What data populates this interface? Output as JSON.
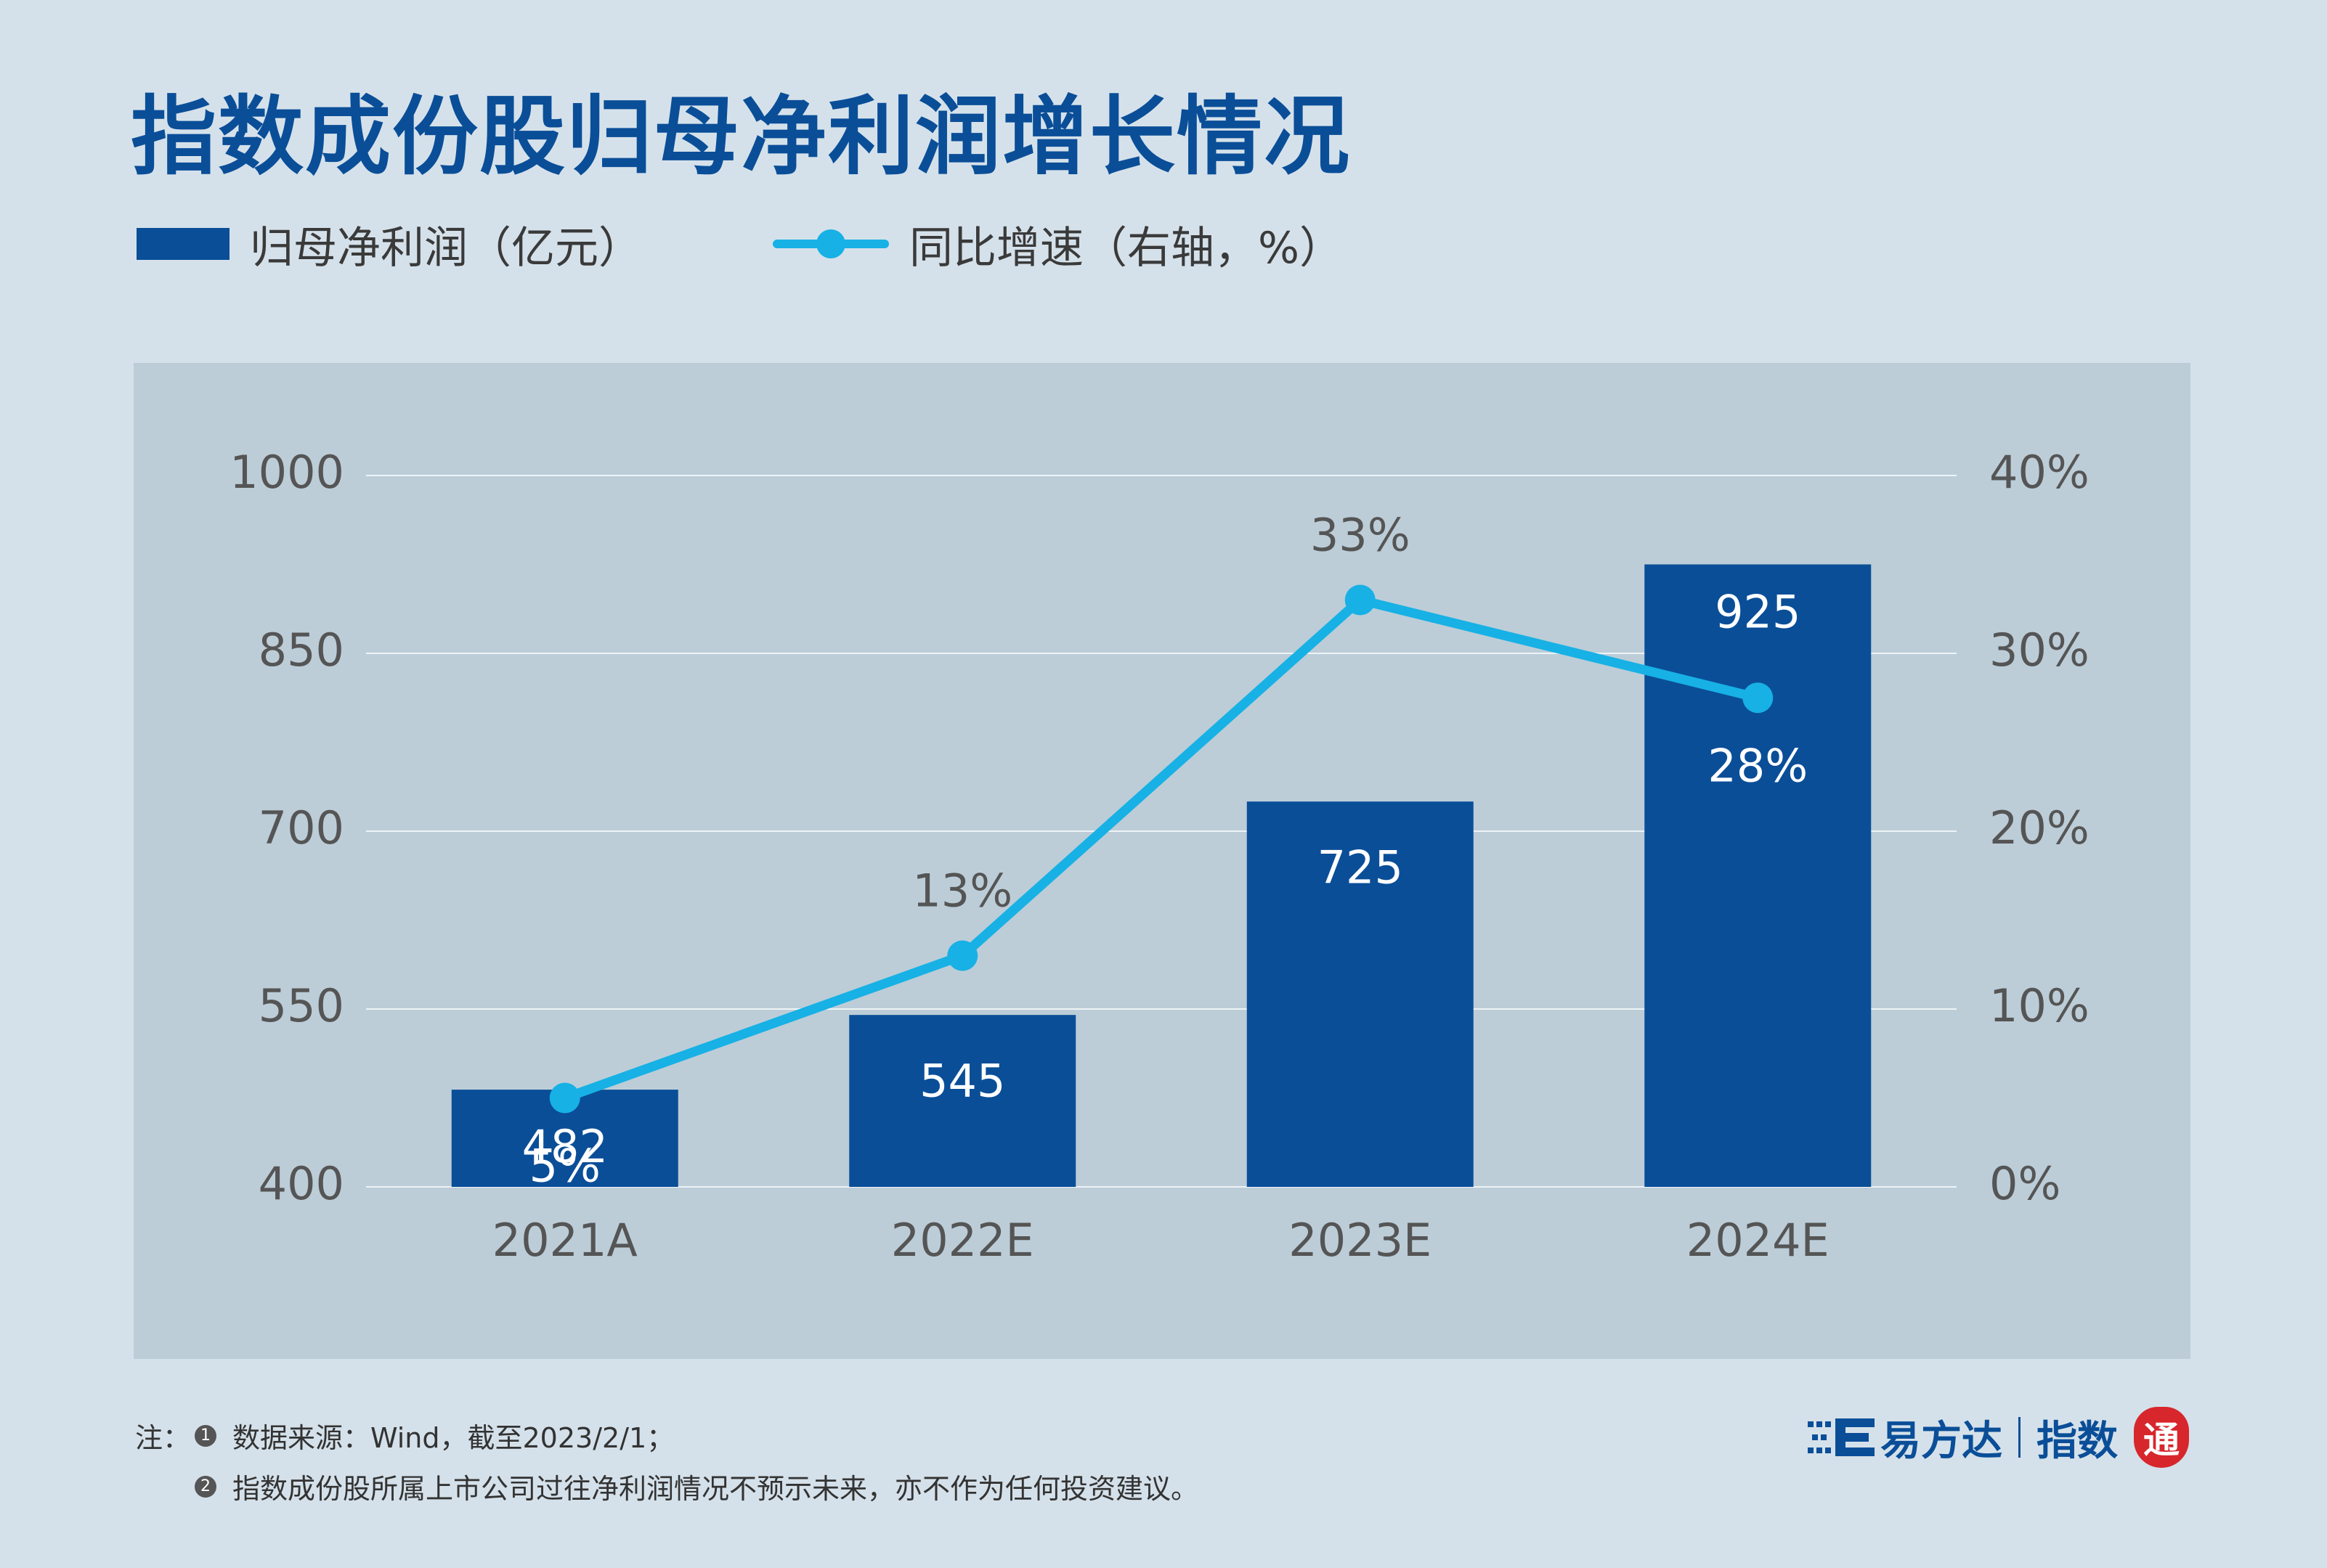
{
  "title": "指数成份股归母净利润增长情况",
  "legend": {
    "bar_label": "归母净利润（亿元）",
    "line_label": "同比增速（右轴，%）"
  },
  "colors": {
    "bar": "#0a4e98",
    "line": "#17b1e5",
    "panel": "#bccdd8",
    "background": "#d5e1ea",
    "title": "#0a4e98"
  },
  "chart_data": {
    "type": "bar",
    "title": "指数成份股归母净利润增长情况",
    "categories": [
      "2021A",
      "2022E",
      "2023E",
      "2024E"
    ],
    "series": [
      {
        "name": "归母净利润（亿元）",
        "type": "bar",
        "axis": "left",
        "values": [
          482,
          545,
          725,
          925
        ],
        "labels": [
          "482",
          "545",
          "725",
          "925"
        ]
      },
      {
        "name": "同比增速（右轴，%）",
        "type": "line",
        "axis": "right",
        "values": [
          5,
          13,
          33,
          27.5
        ],
        "labels": [
          "5%",
          "13%",
          "33%",
          "28%"
        ]
      }
    ],
    "left_axis": {
      "ylim": [
        400,
        1000
      ],
      "ticks": [
        400,
        550,
        700,
        850,
        1000
      ],
      "tick_labels": [
        "400",
        "550",
        "700",
        "850",
        "1000"
      ]
    },
    "right_axis": {
      "ylim": [
        0,
        40
      ],
      "ticks": [
        0,
        10,
        20,
        30,
        40
      ],
      "tick_labels": [
        "0%",
        "10%",
        "20%",
        "30%",
        "40%"
      ]
    },
    "grid": true,
    "legend_position": "top-left"
  },
  "footnotes": {
    "label": "注：",
    "items": [
      {
        "badge": "1",
        "text": "数据来源：Wind，截至2023/2/1；"
      },
      {
        "badge": "2",
        "text": "指数成份股所属上市公司过往净利润情况不预示未来，亦不作为任何投资建议。"
      }
    ]
  },
  "brand": {
    "company": "易方达",
    "product": "指数",
    "seal": "通"
  }
}
